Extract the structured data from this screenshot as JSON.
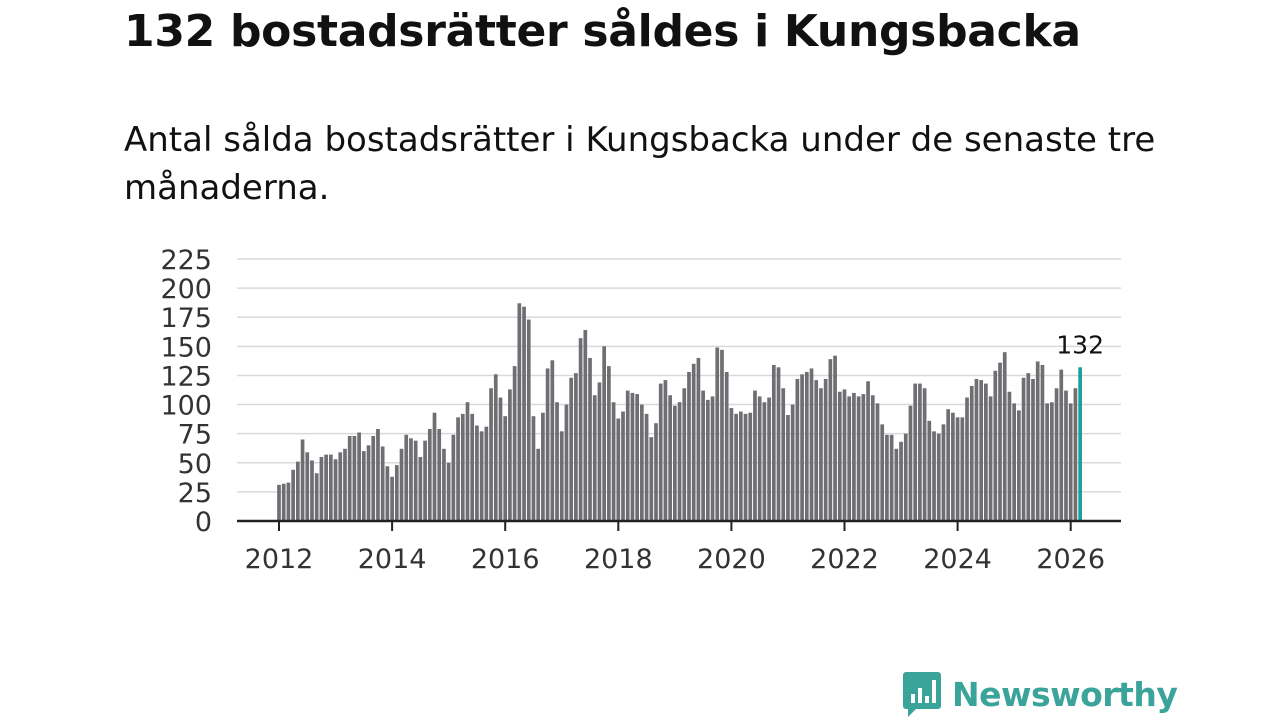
{
  "title": "132 bostadsrätter såldes i Kungsbacka",
  "subtitle": "Antal sålda bostadsrätter i Kungsbacka under de senaste tre månaderna.",
  "brand": {
    "name": "Newsworthy",
    "color": "#3aa39a",
    "icon": "bar-chart-speech-bubble-icon"
  },
  "colors": {
    "bar": "#6e6e73",
    "highlight": "#1b9e9e",
    "grid": "#d9d9d9",
    "axis": "#222222"
  },
  "chart_data": {
    "type": "bar",
    "title": "132 bostadsrätter såldes i Kungsbacka",
    "xlabel": "",
    "ylabel": "",
    "ylim": [
      0,
      225
    ],
    "yticks": [
      0,
      25,
      50,
      75,
      100,
      125,
      150,
      175,
      200,
      225
    ],
    "xticks": [
      2012,
      2014,
      2016,
      2018,
      2020,
      2022,
      2024,
      2026
    ],
    "x_start": 2012,
    "x_step_months": 1,
    "grid": true,
    "highlight_last": true,
    "last_value_label": "132",
    "values": [
      31,
      32,
      33,
      44,
      51,
      70,
      59,
      52,
      41,
      55,
      57,
      57,
      53,
      59,
      62,
      73,
      73,
      76,
      60,
      65,
      73,
      79,
      64,
      47,
      38,
      48,
      62,
      74,
      71,
      69,
      55,
      69,
      79,
      93,
      79,
      62,
      50,
      74,
      89,
      92,
      102,
      92,
      82,
      77,
      81,
      114,
      126,
      106,
      90,
      113,
      133,
      187,
      184,
      173,
      90,
      62,
      93,
      131,
      138,
      102,
      77,
      100,
      123,
      127,
      157,
      164,
      140,
      108,
      119,
      150,
      133,
      102,
      88,
      94,
      112,
      110,
      109,
      100,
      92,
      72,
      84,
      118,
      121,
      108,
      99,
      102,
      114,
      128,
      135,
      140,
      112,
      104,
      107,
      149,
      147,
      128,
      97,
      92,
      94,
      92,
      93,
      112,
      107,
      102,
      106,
      134,
      132,
      114,
      91,
      100,
      122,
      126,
      128,
      131,
      121,
      114,
      122,
      139,
      142,
      111,
      113,
      107,
      110,
      107,
      109,
      120,
      108,
      101,
      83,
      74,
      74,
      62,
      68,
      75,
      99,
      118,
      118,
      114,
      86,
      77,
      75,
      83,
      96,
      93,
      89,
      89,
      106,
      116,
      122,
      121,
      118,
      107,
      129,
      136,
      145,
      111,
      101,
      95,
      123,
      127,
      122,
      137,
      134,
      101,
      102,
      114,
      130,
      112,
      101,
      114,
      132
    ]
  }
}
